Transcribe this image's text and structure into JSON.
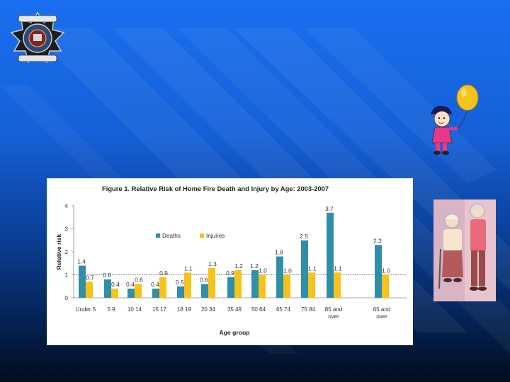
{
  "chart_data": {
    "type": "bar",
    "title": "Figure 1. Relative Risk of Home Fire Death and Injury by Age:  2003-2007",
    "xlabel": "Age group",
    "ylabel": "Relative risk",
    "ylim": [
      0,
      4
    ],
    "yticks": [
      "0",
      "1",
      "2",
      "3",
      "4"
    ],
    "reference_line": 1,
    "legend_position": "top-left",
    "categories": [
      [
        "Under 5"
      ],
      [
        "5 9"
      ],
      [
        "10 14"
      ],
      [
        "15 17"
      ],
      [
        "18 19"
      ],
      [
        "20 34"
      ],
      [
        "35 49"
      ],
      [
        "50 64"
      ],
      [
        "65 74"
      ],
      [
        "75 84"
      ],
      [
        "85 and",
        "over"
      ],
      [
        "65 and",
        "over"
      ]
    ],
    "series": [
      {
        "name": "Deaths",
        "color": "#2f8fa6",
        "values": [
          1.4,
          0.8,
          0.4,
          0.4,
          0.5,
          0.6,
          0.9,
          1.2,
          1.8,
          2.5,
          3.7,
          2.3
        ],
        "labels": [
          "1.4",
          "0.8",
          "0.4",
          "0.4",
          "0.5",
          "0.6",
          "0.9",
          "1.2",
          "1.8",
          "2.5",
          "3.7",
          "2.3"
        ]
      },
      {
        "name": "Injuries",
        "color": "#f7c21a",
        "values": [
          0.7,
          0.4,
          0.6,
          0.9,
          1.1,
          1.3,
          1.2,
          1.0,
          1.0,
          1.1,
          1.1,
          1.0
        ],
        "labels": [
          "0.7",
          "0.4",
          "0.6",
          "0.9",
          "1.1",
          "1.3",
          "1.2",
          "1.0",
          "1.0",
          "1.1",
          "1.1",
          "1.0"
        ]
      }
    ]
  },
  "colors": {
    "axis": "#888888",
    "reference_line": "#333333"
  }
}
